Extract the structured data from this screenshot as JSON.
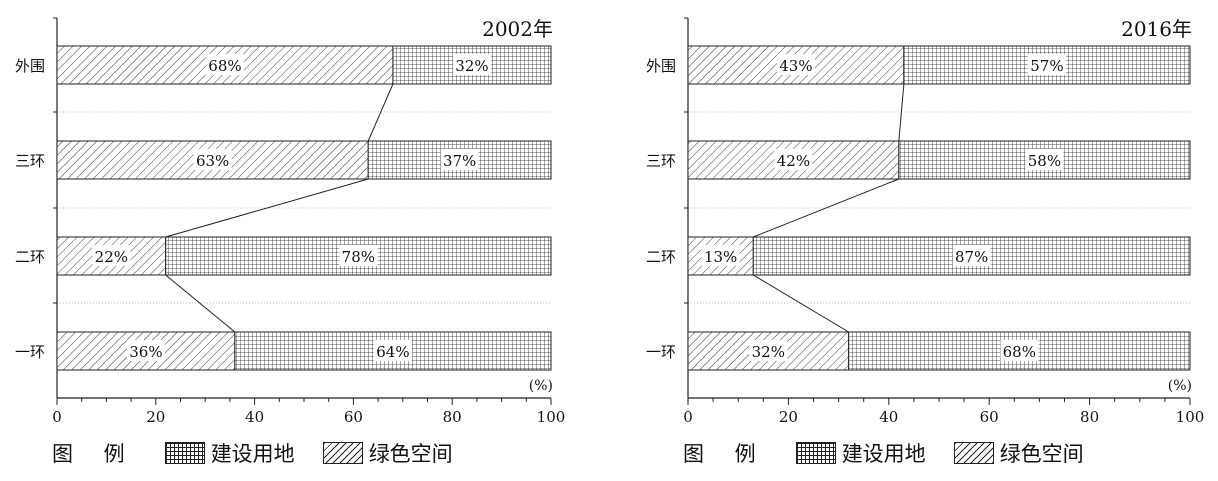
{
  "legend": {
    "title": "图 例",
    "items": [
      {
        "label": "建设用地",
        "pattern": "grid"
      },
      {
        "label": "绿色空间",
        "pattern": "hatch"
      }
    ]
  },
  "chart_data": [
    {
      "type": "bar",
      "stacked": true,
      "orientation": "horizontal",
      "title": "2002年",
      "unit_label": "(%)",
      "categories": [
        "外围",
        "三环",
        "二环",
        "一环"
      ],
      "series": [
        {
          "name": "绿色空间",
          "values": [
            68,
            63,
            22,
            36
          ],
          "labels": [
            "68%",
            "63%",
            "22%",
            "36%"
          ]
        },
        {
          "name": "建设用地",
          "values": [
            32,
            37,
            78,
            64
          ],
          "labels": [
            "32%",
            "37%",
            "78%",
            "64%"
          ]
        }
      ],
      "xlim": [
        0,
        100
      ],
      "xticks": [
        "0",
        "20",
        "40",
        "60",
        "80",
        "100"
      ],
      "connector_lines": true
    },
    {
      "type": "bar",
      "stacked": true,
      "orientation": "horizontal",
      "title": "2016年",
      "unit_label": "(%)",
      "categories": [
        "外围",
        "三环",
        "二环",
        "一环"
      ],
      "series": [
        {
          "name": "绿色空间",
          "values": [
            43,
            42,
            13,
            32
          ],
          "labels": [
            "43%",
            "42%",
            "13%",
            "32%"
          ]
        },
        {
          "name": "建设用地",
          "values": [
            57,
            58,
            87,
            68
          ],
          "labels": [
            "57%",
            "58%",
            "87%",
            "68%"
          ]
        }
      ],
      "xlim": [
        0,
        100
      ],
      "xticks": [
        "0",
        "20",
        "40",
        "60",
        "80",
        "100"
      ],
      "connector_lines": true
    }
  ]
}
